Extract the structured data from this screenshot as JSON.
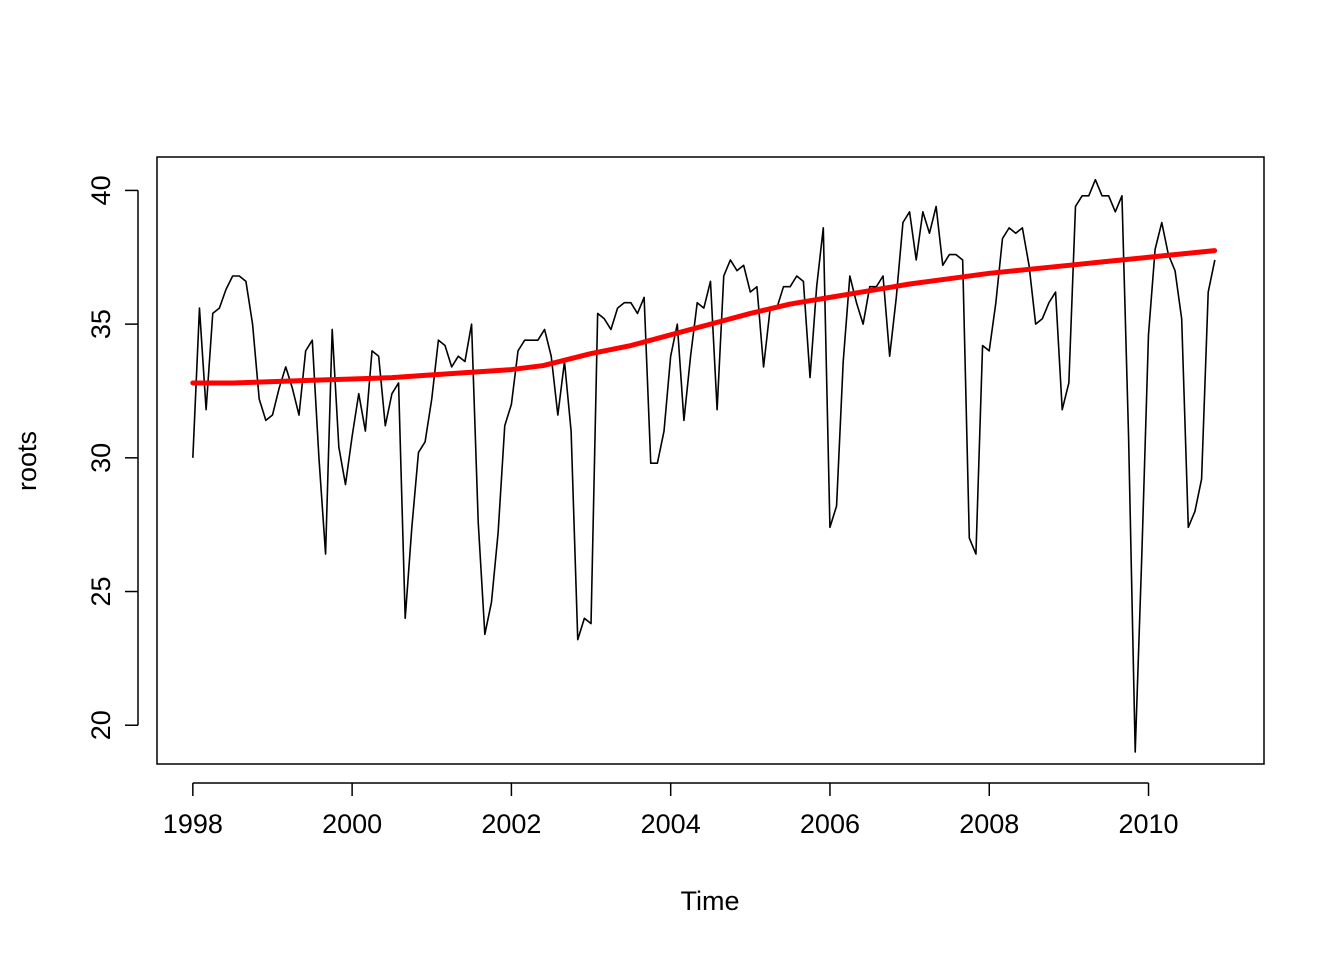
{
  "chart_data": {
    "type": "line",
    "xlabel": "Time",
    "ylabel": "roots",
    "xlim": [
      1997.55,
      2011.45
    ],
    "ylim": [
      18.55,
      41.25
    ],
    "x_ticks": [
      1998,
      2000,
      2002,
      2004,
      2006,
      2008,
      2010
    ],
    "x_tick_labels": [
      "1998",
      "2000",
      "2002",
      "2004",
      "2006",
      "2008",
      "2010"
    ],
    "y_ticks": [
      20,
      25,
      30,
      35,
      40
    ],
    "y_tick_labels": [
      "20",
      "25",
      "30",
      "35",
      "40"
    ],
    "grid": false,
    "legend": "none",
    "colors": {
      "data": "#000000",
      "trend": "#ff0000",
      "box": "#000000"
    },
    "x_start": 1998,
    "x_step": 0.08333,
    "series": [
      {
        "style": "thin-black-line",
        "values": [
          30.0,
          35.6,
          31.8,
          35.4,
          35.6,
          36.3,
          36.8,
          36.8,
          36.6,
          35.0,
          32.2,
          31.4,
          31.6,
          32.6,
          33.4,
          32.6,
          31.6,
          34.0,
          34.4,
          30.0,
          26.4,
          34.8,
          30.4,
          29.0,
          30.8,
          32.4,
          31.0,
          34.0,
          33.8,
          31.2,
          32.4,
          32.8,
          24.0,
          27.4,
          30.2,
          30.6,
          32.2,
          34.4,
          34.2,
          33.4,
          33.8,
          33.6,
          35.0,
          27.6,
          23.4,
          24.6,
          27.2,
          31.2,
          32.0,
          34.0,
          34.4,
          34.4,
          34.4,
          34.8,
          33.8,
          31.6,
          33.6,
          31.0,
          23.2,
          24.0,
          23.8,
          35.4,
          35.2,
          34.8,
          35.6,
          35.8,
          35.8,
          35.4,
          36.0,
          29.8,
          29.8,
          31.0,
          33.8,
          35.0,
          31.4,
          33.8,
          35.8,
          35.6,
          36.6,
          31.8,
          36.8,
          37.4,
          37.0,
          37.2,
          36.2,
          36.4,
          33.4,
          35.6,
          35.6,
          36.4,
          36.4,
          36.8,
          36.6,
          33.0,
          36.4,
          38.6,
          27.4,
          28.2,
          33.6,
          36.8,
          35.8,
          35.0,
          36.4,
          36.4,
          36.8,
          33.8,
          36.0,
          38.8,
          39.2,
          37.4,
          39.2,
          38.4,
          39.4,
          37.2,
          37.6,
          37.6,
          37.4,
          27.0,
          26.4,
          34.2,
          34.0,
          35.8,
          38.2,
          38.6,
          38.4,
          38.6,
          37.2,
          35.0,
          35.2,
          35.8,
          36.2,
          31.8,
          32.8,
          39.4,
          39.8,
          39.8,
          40.4,
          39.8,
          39.8,
          39.2,
          39.8,
          30.8,
          19.0,
          26.4,
          34.6,
          37.8,
          38.8,
          37.6,
          37.0,
          35.2,
          27.4,
          28.0,
          29.2,
          36.2,
          37.4
        ]
      },
      {
        "style": "thick-red-line",
        "x": [
          1998.0,
          1998.5,
          1999.0,
          1999.5,
          2000.0,
          2000.5,
          2001.0,
          2001.5,
          2002.0,
          2002.4,
          2003.0,
          2003.5,
          2004.0,
          2004.5,
          2005.0,
          2005.5,
          2006.0,
          2006.5,
          2007.0,
          2007.5,
          2008.0,
          2008.5,
          2009.0,
          2009.5,
          2010.0,
          2010.5,
          2010.83
        ],
        "values": [
          32.8,
          32.8,
          32.85,
          32.9,
          32.95,
          33.0,
          33.1,
          33.2,
          33.3,
          33.45,
          33.9,
          34.2,
          34.6,
          35.0,
          35.4,
          35.75,
          36.0,
          36.25,
          36.5,
          36.7,
          36.9,
          37.05,
          37.2,
          37.35,
          37.5,
          37.65,
          37.75
        ]
      }
    ]
  }
}
